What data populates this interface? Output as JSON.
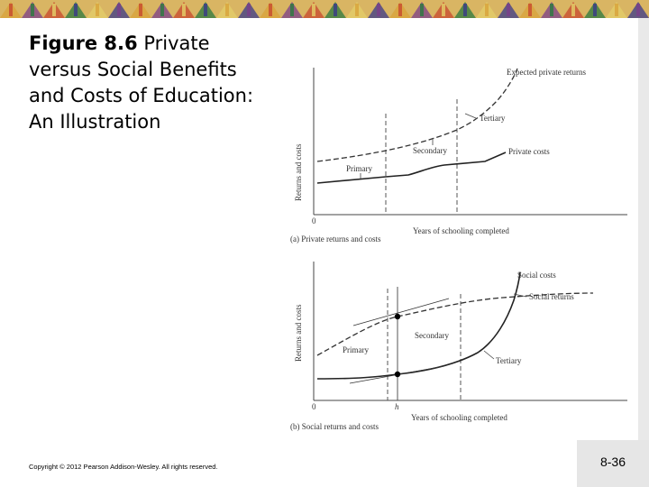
{
  "slide": {
    "title_bold": "Figure 8.6",
    "title_rest": "Private versus Social Benefits and Costs of Education: An Illustration",
    "copyright": "Copyright © 2012 Pearson Addison-Wesley. All rights reserved.",
    "slide_number": "8-36"
  },
  "panel_a": {
    "y_axis": "Returns and costs",
    "x_axis": "Years of schooling completed",
    "origin": "0",
    "caption": "(a) Private returns and costs",
    "labels": {
      "expected_private_returns": "Expected private returns",
      "tertiary": "Tertiary",
      "secondary": "Secondary",
      "primary": "Primary",
      "private_costs": "Private costs"
    }
  },
  "panel_b": {
    "y_axis": "Returns and costs",
    "x_axis": "Years of schooling completed",
    "origin": "0",
    "tick_h": "h",
    "caption": "(b) Social returns and costs",
    "labels": {
      "social_costs": "Social costs",
      "social_returns": "Social returns",
      "secondary": "Secondary",
      "primary": "Primary",
      "tertiary": "Tertiary"
    }
  },
  "colors": {
    "banner": [
      "#d8a33a",
      "#7a3f8a",
      "#c7482e",
      "#2b7a3f",
      "#e3cf6a",
      "#3a3a8a"
    ]
  }
}
